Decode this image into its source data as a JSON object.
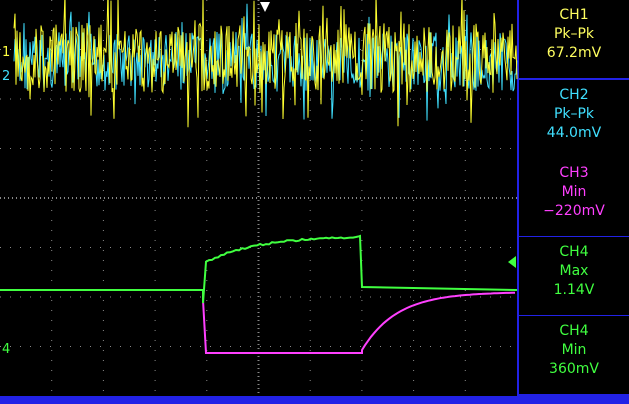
{
  "measurements": [
    {
      "channel": "CH1",
      "type": "Pk–Pk",
      "value": "67.2mV"
    },
    {
      "channel": "CH2",
      "type": "Pk–Pk",
      "value": "44.0mV"
    },
    {
      "channel": "CH3",
      "type": "Min",
      "value": "−220mV"
    },
    {
      "channel": "CH4",
      "type": "Max",
      "value": "1.14V"
    },
    {
      "channel": "CH4",
      "type": "Min",
      "value": "360mV"
    }
  ],
  "markers": [
    "1",
    "2",
    "4"
  ]
}
